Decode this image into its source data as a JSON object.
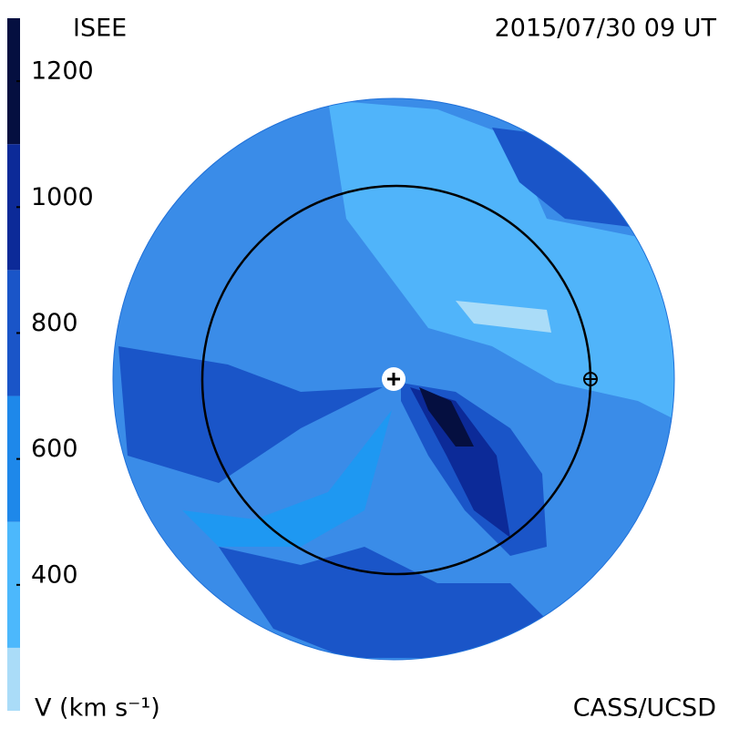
{
  "chart_data": {
    "type": "contour-map",
    "title": "ISEE",
    "date": "2015/07/30 09 UT",
    "credit": "CASS/UCSD",
    "colorbar_label": "V (km s⁻¹)",
    "zlim": [
      200,
      1300
    ],
    "zticks": [
      400,
      600,
      800,
      1000,
      1200
    ],
    "levels": [
      200,
      300,
      500,
      700,
      900,
      1100,
      1300
    ],
    "colors": [
      "#aadcf8",
      "#4cb8fc",
      "#1e88ea",
      "#1a55c8",
      "#0c2a98",
      "#050f40"
    ]
  }
}
